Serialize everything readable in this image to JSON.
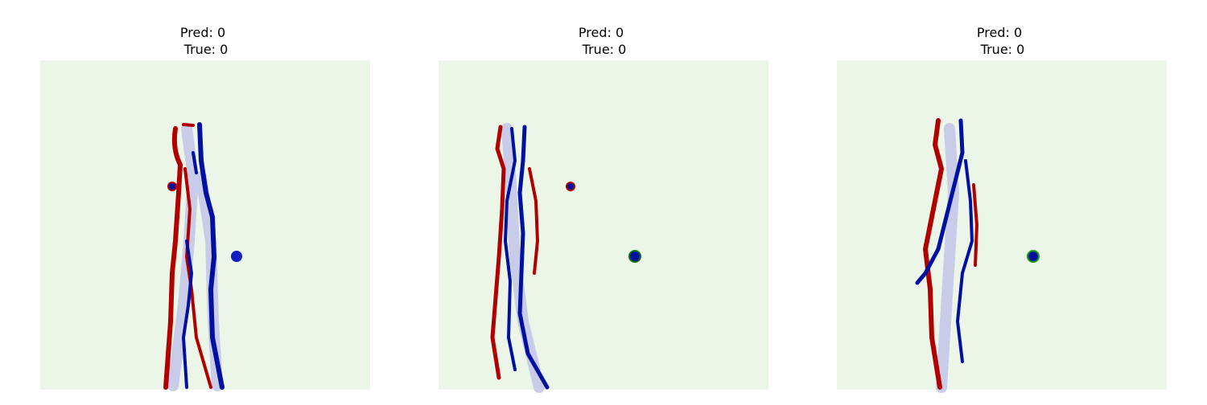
{
  "panels": [
    {
      "title": {
        "pred": "Pred: 0",
        "true": "True: 0"
      }
    },
    {
      "title": {
        "pred": "Pred: 0",
        "true": "True: 0"
      }
    },
    {
      "title": {
        "pred": "Pred: 0",
        "true": "True: 0"
      }
    }
  ]
}
